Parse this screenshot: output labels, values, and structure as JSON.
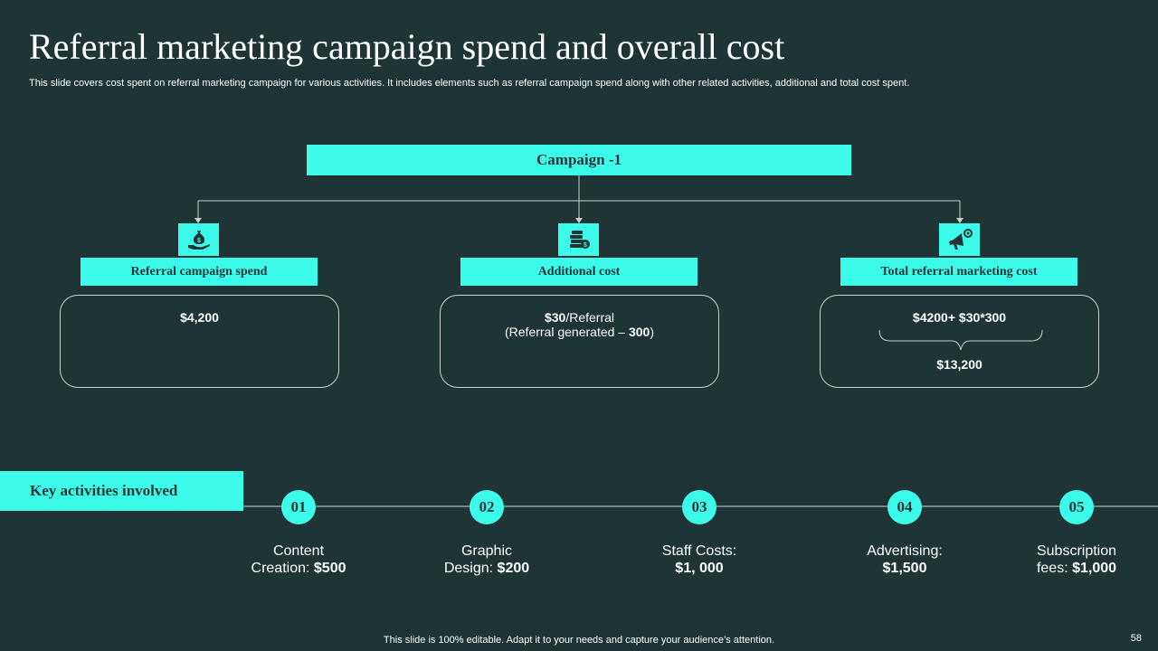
{
  "title": "Referral marketing campaign spend and overall cost",
  "subtitle": "This slide covers cost spent on referral marketing campaign for various activities. It includes elements such as referral campaign spend along with other related activities, additional and total cost spent.",
  "campaign_label": "Campaign -1",
  "columns": [
    {
      "header": "Referral campaign  spend",
      "icon": "money-bag-hand-icon",
      "value": "$4,200"
    },
    {
      "header": "Additional  cost",
      "icon": "coin-stack-icon",
      "value_bold": "$30",
      "value_rest": "/Referral",
      "sub_prefix": "(Referral generated – ",
      "sub_bold": "300",
      "sub_suffix": ")"
    },
    {
      "header": "Total referral marketing  cost",
      "icon": "megaphone-gear-icon",
      "formula": "$4200+ $30*300",
      "result": "$13,200"
    }
  ],
  "key_activities_label": "Key activities involved",
  "steps": [
    {
      "num": "01",
      "line1": "Content",
      "line2_prefix": "Creation: ",
      "line2_value": "$500"
    },
    {
      "num": "02",
      "line1": "Graphic",
      "line2_prefix": "Design: ",
      "line2_value": "$200"
    },
    {
      "num": "03",
      "line1": "Staff Costs:",
      "line2_prefix": "",
      "line2_value": "$1, 000"
    },
    {
      "num": "04",
      "line1": "Advertising:",
      "line2_prefix": "",
      "line2_value": "$1,500"
    },
    {
      "num": "05",
      "line1": "Subscription",
      "line2_prefix": "fees: ",
      "line2_value": "$1,000"
    }
  ],
  "footer": "This slide is 100% editable. Adapt it to your needs and capture your audience’s attention.",
  "page_number": "58",
  "colors": {
    "background": "#1f3535",
    "accent": "#3dfbea",
    "text": "#ffffff"
  }
}
